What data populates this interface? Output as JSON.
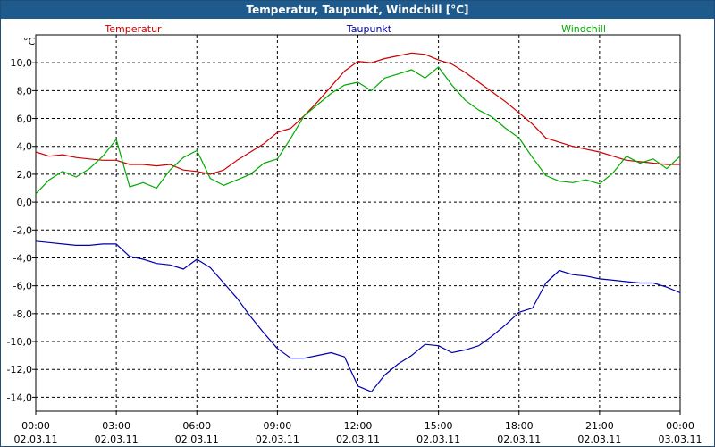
{
  "window": {
    "title": "Temperatur, Taupunkt, Windchill [°C]"
  },
  "chart_data": {
    "type": "line",
    "title": "Temperatur, Taupunkt, Windchill [°C]",
    "yunit": "°C",
    "ylim": [
      -15,
      12
    ],
    "yticks": [
      10,
      8,
      6,
      4,
      2,
      0,
      -2,
      -4,
      -6,
      -8,
      -10,
      -12,
      -14
    ],
    "ytick_labels": [
      "10,0",
      "8,0",
      "6,0",
      "4,0",
      "2,0",
      "0,0",
      "-2,0",
      "-4,0",
      "-6,0",
      "-8,0",
      "-10,0",
      "-12,0",
      "-14,0"
    ],
    "xlim": [
      0,
      24
    ],
    "xticks": [
      0,
      3,
      6,
      9,
      12,
      15,
      18,
      21,
      24
    ],
    "xtick_labels": [
      {
        "time": "00:00",
        "date": "02.03.11"
      },
      {
        "time": "03:00",
        "date": "02.03.11"
      },
      {
        "time": "06:00",
        "date": "02.03.11"
      },
      {
        "time": "09:00",
        "date": "02.03.11"
      },
      {
        "time": "12:00",
        "date": "02.03.11"
      },
      {
        "time": "15:00",
        "date": "02.03.11"
      },
      {
        "time": "18:00",
        "date": "02.03.11"
      },
      {
        "time": "21:00",
        "date": "02.03.11"
      },
      {
        "time": "00:00",
        "date": "03.03.11"
      }
    ],
    "grid": true,
    "legend_position": "top",
    "series": [
      {
        "name": "Temperatur",
        "color": "#cc0000",
        "points": [
          [
            0,
            3.6
          ],
          [
            0.5,
            3.3
          ],
          [
            1,
            3.4
          ],
          [
            1.5,
            3.2
          ],
          [
            2,
            3.1
          ],
          [
            2.5,
            3.0
          ],
          [
            3,
            3.0
          ],
          [
            3.5,
            2.7
          ],
          [
            4,
            2.7
          ],
          [
            4.5,
            2.6
          ],
          [
            5,
            2.7
          ],
          [
            5.5,
            2.3
          ],
          [
            6,
            2.2
          ],
          [
            6.5,
            2.0
          ],
          [
            7,
            2.3
          ],
          [
            7.5,
            3.0
          ],
          [
            8,
            3.6
          ],
          [
            8.5,
            4.2
          ],
          [
            9,
            5.0
          ],
          [
            9.5,
            5.3
          ],
          [
            10,
            6.2
          ],
          [
            10.5,
            7.2
          ],
          [
            11,
            8.3
          ],
          [
            11.5,
            9.4
          ],
          [
            12,
            10.1
          ],
          [
            12.5,
            10.0
          ],
          [
            13,
            10.3
          ],
          [
            13.5,
            10.5
          ],
          [
            14,
            10.7
          ],
          [
            14.5,
            10.6
          ],
          [
            15,
            10.2
          ],
          [
            15.5,
            9.9
          ],
          [
            16,
            9.3
          ],
          [
            16.5,
            8.6
          ],
          [
            17,
            7.9
          ],
          [
            17.5,
            7.2
          ],
          [
            18,
            6.4
          ],
          [
            18.5,
            5.6
          ],
          [
            19,
            4.6
          ],
          [
            19.5,
            4.3
          ],
          [
            20,
            4.0
          ],
          [
            20.5,
            3.8
          ],
          [
            21,
            3.6
          ],
          [
            21.5,
            3.3
          ],
          [
            22,
            3.0
          ],
          [
            22.5,
            2.9
          ],
          [
            23,
            2.8
          ],
          [
            23.5,
            2.7
          ],
          [
            24,
            2.7
          ]
        ]
      },
      {
        "name": "Taupunkt",
        "color": "#0000aa",
        "points": [
          [
            0,
            -2.8
          ],
          [
            0.5,
            -2.9
          ],
          [
            1,
            -3.0
          ],
          [
            1.5,
            -3.1
          ],
          [
            2,
            -3.1
          ],
          [
            2.5,
            -3.0
          ],
          [
            3,
            -3.0
          ],
          [
            3.5,
            -3.9
          ],
          [
            4,
            -4.1
          ],
          [
            4.5,
            -4.4
          ],
          [
            5,
            -4.5
          ],
          [
            5.5,
            -4.8
          ],
          [
            6,
            -4.1
          ],
          [
            6.5,
            -4.7
          ],
          [
            7,
            -5.8
          ],
          [
            7.5,
            -6.9
          ],
          [
            8,
            -8.2
          ],
          [
            8.5,
            -9.4
          ],
          [
            9,
            -10.5
          ],
          [
            9.5,
            -11.2
          ],
          [
            10,
            -11.2
          ],
          [
            10.5,
            -11.0
          ],
          [
            11,
            -10.8
          ],
          [
            11.5,
            -11.1
          ],
          [
            12,
            -13.2
          ],
          [
            12.5,
            -13.6
          ],
          [
            13,
            -12.4
          ],
          [
            13.5,
            -11.6
          ],
          [
            14,
            -11.0
          ],
          [
            14.5,
            -10.2
          ],
          [
            15,
            -10.3
          ],
          [
            15.5,
            -10.8
          ],
          [
            16,
            -10.6
          ],
          [
            16.5,
            -10.3
          ],
          [
            17,
            -9.6
          ],
          [
            17.5,
            -8.8
          ],
          [
            18,
            -7.9
          ],
          [
            18.5,
            -7.6
          ],
          [
            19,
            -5.8
          ],
          [
            19.5,
            -4.9
          ],
          [
            20,
            -5.2
          ],
          [
            20.5,
            -5.3
          ],
          [
            21,
            -5.5
          ],
          [
            21.5,
            -5.6
          ],
          [
            22,
            -5.7
          ],
          [
            22.5,
            -5.8
          ],
          [
            23,
            -5.8
          ],
          [
            23.5,
            -6.1
          ],
          [
            24,
            -6.5
          ]
        ]
      },
      {
        "name": "Windchill",
        "color": "#00aa00",
        "points": [
          [
            0,
            0.6
          ],
          [
            0.5,
            1.6
          ],
          [
            1,
            2.2
          ],
          [
            1.5,
            1.8
          ],
          [
            2,
            2.4
          ],
          [
            2.5,
            3.3
          ],
          [
            3,
            4.5
          ],
          [
            3.5,
            1.1
          ],
          [
            4,
            1.4
          ],
          [
            4.5,
            1.0
          ],
          [
            5,
            2.3
          ],
          [
            5.5,
            3.2
          ],
          [
            6,
            3.7
          ],
          [
            6.5,
            1.7
          ],
          [
            7,
            1.2
          ],
          [
            7.5,
            1.6
          ],
          [
            8,
            2.0
          ],
          [
            8.5,
            2.8
          ],
          [
            9,
            3.1
          ],
          [
            9.5,
            4.6
          ],
          [
            10,
            6.2
          ],
          [
            10.5,
            7.0
          ],
          [
            11,
            7.8
          ],
          [
            11.5,
            8.4
          ],
          [
            12,
            8.6
          ],
          [
            12.5,
            8.0
          ],
          [
            13,
            8.9
          ],
          [
            13.5,
            9.2
          ],
          [
            14,
            9.5
          ],
          [
            14.5,
            8.9
          ],
          [
            15,
            9.7
          ],
          [
            15.5,
            8.4
          ],
          [
            16,
            7.3
          ],
          [
            16.5,
            6.6
          ],
          [
            17,
            6.1
          ],
          [
            17.5,
            5.3
          ],
          [
            18,
            4.6
          ],
          [
            18.5,
            3.2
          ],
          [
            19,
            1.9
          ],
          [
            19.5,
            1.5
          ],
          [
            20,
            1.4
          ],
          [
            20.5,
            1.6
          ],
          [
            21,
            1.3
          ],
          [
            21.5,
            2.1
          ],
          [
            22,
            3.3
          ],
          [
            22.5,
            2.8
          ],
          [
            23,
            3.1
          ],
          [
            23.5,
            2.4
          ],
          [
            24,
            3.3
          ]
        ]
      }
    ]
  }
}
